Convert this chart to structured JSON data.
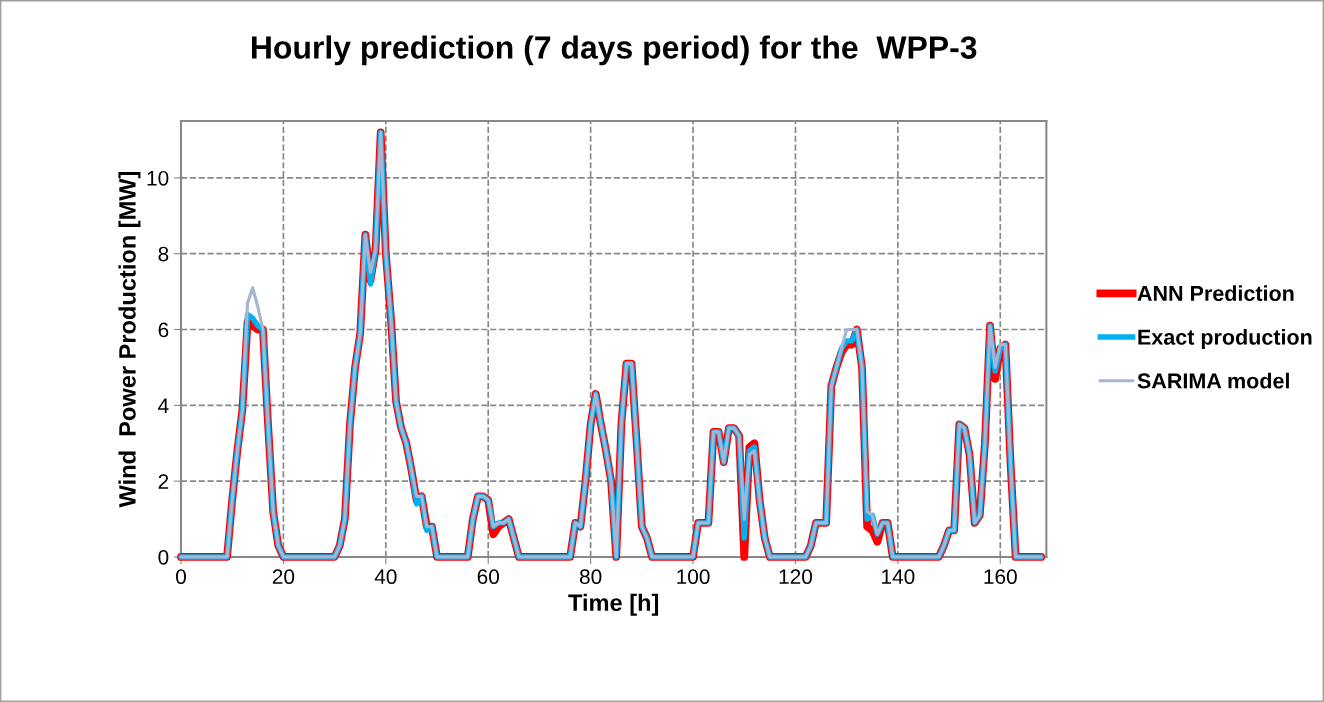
{
  "chart_data": {
    "type": "line",
    "title": "Hourly prediction (7 days period) for the  WPP-3",
    "xlabel": "Time [h]",
    "ylabel": "Wind  Power Production [MW]",
    "xlim": [
      0,
      169
    ],
    "xticks": [
      0,
      20,
      40,
      60,
      80,
      100,
      120,
      140,
      160
    ],
    "ylim": [
      0,
      11.5
    ],
    "yticks": [
      0,
      2,
      4,
      6,
      8,
      10
    ],
    "grid": true,
    "legend": "right",
    "line_style": "solid",
    "marker": "none",
    "x": [
      0,
      1,
      2,
      3,
      4,
      5,
      6,
      7,
      8,
      9,
      10,
      11,
      12,
      13,
      14,
      15,
      16,
      17,
      18,
      19,
      20,
      21,
      22,
      23,
      24,
      25,
      26,
      27,
      28,
      29,
      30,
      31,
      32,
      33,
      34,
      35,
      36,
      37,
      38,
      39,
      40,
      41,
      42,
      43,
      44,
      45,
      46,
      47,
      48,
      49,
      50,
      51,
      52,
      53,
      54,
      55,
      56,
      57,
      58,
      59,
      60,
      61,
      62,
      63,
      64,
      65,
      66,
      67,
      68,
      69,
      70,
      71,
      72,
      73,
      74,
      75,
      76,
      77,
      78,
      79,
      80,
      81,
      82,
      83,
      84,
      85,
      86,
      87,
      88,
      89,
      90,
      91,
      92,
      93,
      94,
      95,
      96,
      97,
      98,
      99,
      100,
      101,
      102,
      103,
      104,
      105,
      106,
      107,
      108,
      109,
      110,
      111,
      112,
      113,
      114,
      115,
      116,
      117,
      118,
      119,
      120,
      121,
      122,
      123,
      124,
      125,
      126,
      127,
      128,
      129,
      130,
      131,
      132,
      133,
      134,
      135,
      136,
      137,
      138,
      139,
      140,
      141,
      142,
      143,
      144,
      145,
      146,
      147,
      148,
      149,
      150,
      151,
      152,
      153,
      154,
      155,
      156,
      157,
      158,
      159,
      160,
      161,
      162,
      163,
      164,
      165,
      166,
      167,
      168
    ],
    "series": [
      {
        "name": "ANN Prediction",
        "color": "#ff0000",
        "values": [
          0,
          0,
          0,
          0,
          0,
          0,
          0,
          0,
          0,
          0,
          1.5,
          2.8,
          3.9,
          6.2,
          6.1,
          6.0,
          6.0,
          3.5,
          1.2,
          0.3,
          0,
          0,
          0,
          0,
          0,
          0,
          0,
          0,
          0,
          0,
          0,
          0.3,
          1.0,
          3.5,
          5.0,
          5.9,
          8.5,
          7.3,
          8.1,
          11.2,
          8.0,
          6.3,
          4.1,
          3.4,
          3.0,
          2.3,
          1.5,
          1.6,
          0.8,
          0.8,
          0,
          0,
          0,
          0,
          0,
          0,
          0,
          1.0,
          1.6,
          1.6,
          1.5,
          0.6,
          0.8,
          0.9,
          1.0,
          0.5,
          0,
          0,
          0,
          0,
          0,
          0,
          0,
          0,
          0,
          0,
          0,
          0.9,
          0.8,
          2.0,
          3.5,
          4.3,
          3.5,
          2.8,
          2.0,
          0,
          3.5,
          5.1,
          5.1,
          3.0,
          0.8,
          0.5,
          0,
          0,
          0,
          0,
          0,
          0,
          0,
          0,
          0,
          0.9,
          0.9,
          0.9,
          3.3,
          3.3,
          2.5,
          3.4,
          3.4,
          3.2,
          0,
          2.9,
          3.0,
          1.5,
          0.5,
          0,
          0,
          0,
          0,
          0,
          0,
          0,
          0,
          0.3,
          0.9,
          0.9,
          0.9,
          4.5,
          5.0,
          5.4,
          5.6,
          5.6,
          6.0,
          5.0,
          0.8,
          0.7,
          0.4,
          0.9,
          0.9,
          0,
          0,
          0,
          0,
          0,
          0,
          0,
          0,
          0,
          0,
          0.3,
          0.7,
          0.7,
          3.5,
          3.4,
          2.7,
          0.9,
          1.1,
          3.0,
          6.1,
          4.7,
          5.5,
          5.6,
          2.5,
          0,
          0,
          0,
          0,
          0,
          0
        ]
      },
      {
        "name": "Exact production",
        "color": "#00b0f0",
        "values": [
          0,
          0,
          0,
          0,
          0,
          0,
          0,
          0,
          0,
          0,
          1.5,
          2.8,
          3.9,
          6.4,
          6.3,
          6.1,
          6.0,
          3.5,
          1.2,
          0.3,
          0,
          0,
          0,
          0,
          0,
          0,
          0,
          0,
          0,
          0,
          0,
          0.3,
          1.0,
          3.5,
          5.0,
          5.9,
          8.5,
          7.2,
          8.1,
          11.2,
          8.0,
          6.3,
          4.1,
          3.4,
          3.0,
          2.3,
          1.4,
          1.6,
          0.7,
          0.8,
          0,
          0,
          0,
          0,
          0,
          0,
          0,
          1.0,
          1.6,
          1.6,
          1.5,
          0.8,
          0.9,
          0.9,
          1.0,
          0.5,
          0,
          0,
          0,
          0,
          0,
          0,
          0,
          0,
          0,
          0,
          0,
          0.9,
          0.8,
          2.0,
          3.5,
          4.3,
          3.5,
          2.8,
          2.0,
          0,
          3.5,
          5.1,
          5.1,
          3.0,
          0.8,
          0.5,
          0,
          0,
          0,
          0,
          0,
          0,
          0,
          0,
          0,
          0.9,
          0.9,
          0.9,
          3.3,
          3.3,
          2.5,
          3.4,
          3.4,
          3.2,
          0.5,
          2.8,
          2.9,
          1.5,
          0.5,
          0,
          0,
          0,
          0,
          0,
          0,
          0,
          0,
          0.3,
          0.9,
          0.9,
          0.9,
          4.5,
          5.0,
          5.5,
          5.7,
          5.7,
          6.0,
          5.0,
          1.0,
          1.1,
          0.6,
          0.9,
          0.9,
          0,
          0,
          0,
          0,
          0,
          0,
          0,
          0,
          0,
          0,
          0.3,
          0.7,
          0.7,
          3.5,
          3.4,
          2.7,
          0.9,
          1.1,
          3.0,
          6.1,
          4.9,
          5.5,
          5.6,
          2.5,
          0,
          0,
          0,
          0,
          0,
          0
        ]
      },
      {
        "name": "SARIMA model",
        "color": "#a5b5d3",
        "values": [
          0,
          0,
          0,
          0,
          0,
          0,
          0,
          0,
          0,
          0,
          1.5,
          2.8,
          3.9,
          6.7,
          7.1,
          6.6,
          6.0,
          3.5,
          1.2,
          0.3,
          0,
          0,
          0,
          0,
          0,
          0,
          0,
          0,
          0,
          0,
          0,
          0.3,
          1.0,
          3.5,
          5.0,
          5.9,
          8.5,
          7.5,
          8.1,
          11.2,
          8.0,
          6.3,
          4.1,
          3.4,
          3.0,
          2.3,
          1.6,
          1.6,
          0.8,
          0.8,
          0,
          0,
          0,
          0,
          0,
          0,
          0,
          1.0,
          1.6,
          1.6,
          1.5,
          0.8,
          0.9,
          0.9,
          1.0,
          0.5,
          0,
          0,
          0,
          0,
          0,
          0,
          0,
          0,
          0,
          0,
          0,
          0.9,
          0.8,
          2.0,
          3.5,
          4.3,
          3.5,
          2.8,
          2.0,
          0,
          3.5,
          5.1,
          5.1,
          3.0,
          0.8,
          0.5,
          0,
          0,
          0,
          0,
          0,
          0,
          0,
          0,
          0,
          0.9,
          0.9,
          0.9,
          3.3,
          3.3,
          2.5,
          3.4,
          3.4,
          3.2,
          1.0,
          2.7,
          2.8,
          1.5,
          0.5,
          0,
          0,
          0,
          0,
          0,
          0,
          0,
          0,
          0.3,
          0.9,
          0.9,
          0.9,
          4.5,
          5.0,
          5.5,
          6.0,
          6.0,
          6.0,
          5.0,
          1.2,
          1.1,
          0.6,
          0.9,
          0.9,
          0,
          0,
          0,
          0,
          0,
          0,
          0,
          0,
          0,
          0,
          0.3,
          0.7,
          0.7,
          3.5,
          3.4,
          2.7,
          0.9,
          1.1,
          3.0,
          6.1,
          5.0,
          5.6,
          5.6,
          2.5,
          0,
          0,
          0,
          0,
          0,
          0
        ]
      }
    ]
  }
}
